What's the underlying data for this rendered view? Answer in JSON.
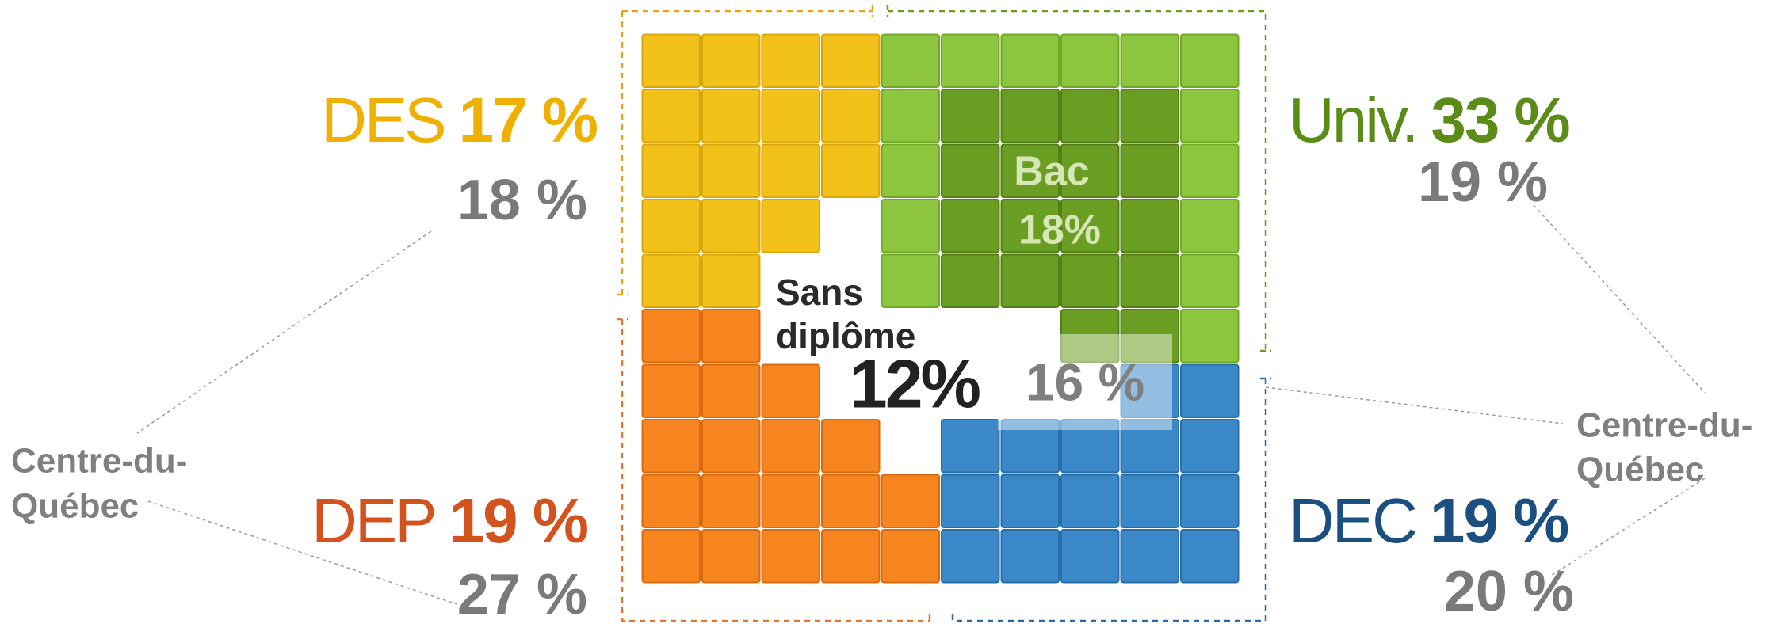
{
  "groups": [
    {
      "name": "DES",
      "value": "17 %",
      "regional": "18 %"
    },
    {
      "name": "Univ.",
      "value": "33 %",
      "regional": "19 %"
    },
    {
      "name": "DEP",
      "value": "19 %",
      "regional": "27 %"
    },
    {
      "name": "DEC",
      "value": "19 %",
      "regional": "20 %"
    }
  ],
  "region_label": [
    "Centre-du-",
    "Québec"
  ],
  "sans_diplome": {
    "lines": [
      "Sans",
      "diplôme"
    ],
    "value": "12%",
    "regional": "16 %"
  },
  "bac": {
    "name": "Bac",
    "value": "18%"
  }
}
